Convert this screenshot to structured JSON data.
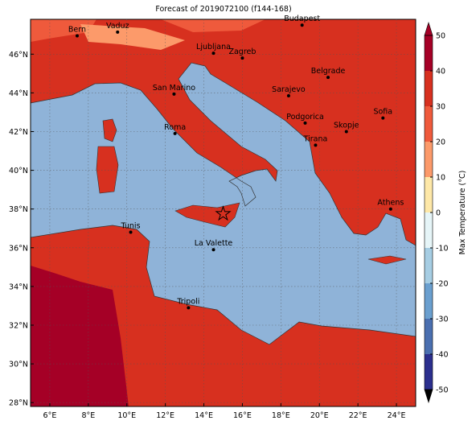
{
  "title": "Forecast of 2019072100 (f144-168)",
  "map": {
    "lon_range": [
      5,
      25
    ],
    "lat_range": [
      27.8,
      47.8
    ],
    "grid": true,
    "lon_ticks": [
      {
        "value": 6,
        "label": "6°E"
      },
      {
        "value": 8,
        "label": "8°E"
      },
      {
        "value": 10,
        "label": "10°E"
      },
      {
        "value": 12,
        "label": "12°E"
      },
      {
        "value": 14,
        "label": "14°E"
      },
      {
        "value": 16,
        "label": "16°E"
      },
      {
        "value": 18,
        "label": "18°E"
      },
      {
        "value": 20,
        "label": "20°E"
      },
      {
        "value": 22,
        "label": "22°E"
      },
      {
        "value": 24,
        "label": "24°E"
      }
    ],
    "lat_ticks": [
      {
        "value": 28,
        "label": "28°N"
      },
      {
        "value": 30,
        "label": "30°N"
      },
      {
        "value": 32,
        "label": "32°N"
      },
      {
        "value": 34,
        "label": "34°N"
      },
      {
        "value": 36,
        "label": "36°N"
      },
      {
        "value": 38,
        "label": "38°N"
      },
      {
        "value": 40,
        "label": "40°N"
      },
      {
        "value": 42,
        "label": "42°N"
      },
      {
        "value": 44,
        "label": "44°N"
      },
      {
        "value": 46,
        "label": "46°N"
      }
    ],
    "cities": [
      {
        "name": "Bern",
        "lon": 7.42,
        "lat": 46.95
      },
      {
        "name": "Vaduz",
        "lon": 9.52,
        "lat": 47.14
      },
      {
        "name": "Budapest",
        "lon": 19.1,
        "lat": 47.5
      },
      {
        "name": "Ljubljana",
        "lon": 14.5,
        "lat": 46.05
      },
      {
        "name": "Zagreb",
        "lon": 16.0,
        "lat": 45.8
      },
      {
        "name": "Belgrade",
        "lon": 20.45,
        "lat": 44.8
      },
      {
        "name": "San Marino",
        "lon": 12.45,
        "lat": 43.94
      },
      {
        "name": "Sarajevo",
        "lon": 18.4,
        "lat": 43.85
      },
      {
        "name": "Podgorica",
        "lon": 19.26,
        "lat": 42.44
      },
      {
        "name": "Sofia",
        "lon": 23.3,
        "lat": 42.7
      },
      {
        "name": "Roma",
        "lon": 12.5,
        "lat": 41.9
      },
      {
        "name": "Skopje",
        "lon": 21.4,
        "lat": 42.0
      },
      {
        "name": "Tirana",
        "lon": 19.8,
        "lat": 41.3
      },
      {
        "name": "Athens",
        "lon": 23.7,
        "lat": 38.0
      },
      {
        "name": "Tunis",
        "lon": 10.2,
        "lat": 36.8
      },
      {
        "name": "La Valette",
        "lon": 14.5,
        "lat": 35.9
      },
      {
        "name": "Tripoli",
        "lon": 13.2,
        "lat": 32.9
      }
    ],
    "star": {
      "lon": 15.0,
      "lat": 37.75
    }
  },
  "colorbar": {
    "label": "Max Temperature (°C)",
    "ticks": [
      50,
      40,
      30,
      20,
      10,
      0,
      -10,
      -20,
      -30,
      -40,
      -50
    ],
    "colors": [
      "#a50026",
      "#d7301f",
      "#ef5a3c",
      "#fc9a6a",
      "#fee8a8",
      "#e6f5f8",
      "#a6cde3",
      "#6a9fcf",
      "#4a6fb0",
      "#2b2f8e"
    ]
  }
}
